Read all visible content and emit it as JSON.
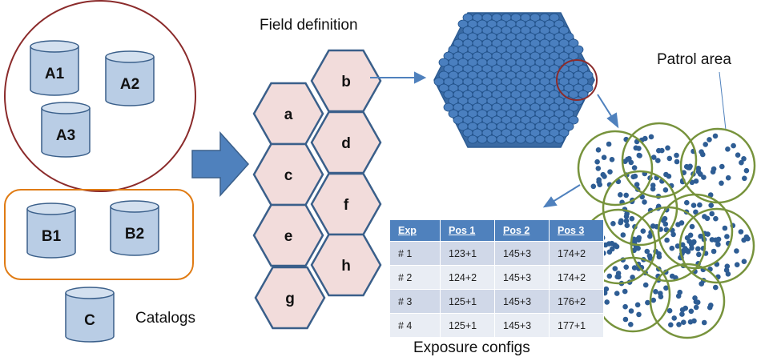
{
  "labels": {
    "field_definition": "Field definition",
    "patrol_area": "Patrol area",
    "catalogs": "Catalogs",
    "exposure_configs": "Exposure configs"
  },
  "catalog_groups": [
    {
      "id": "group-a",
      "shape": "circle",
      "border_color": "#8b2b2b",
      "catalogs": [
        "A1",
        "A2",
        "A3"
      ]
    },
    {
      "id": "group-b",
      "shape": "rounded-rect",
      "border_color": "#e07b13",
      "catalogs": [
        "B1",
        "B2"
      ]
    },
    {
      "id": "single",
      "shape": "none",
      "catalogs": [
        "C"
      ]
    }
  ],
  "fields": [
    "a",
    "b",
    "c",
    "d",
    "e",
    "f",
    "g",
    "h"
  ],
  "exposure_table": {
    "headers": [
      "Exp",
      "Pos 1",
      "Pos 2",
      "Pos 3"
    ],
    "rows": [
      [
        "# 1",
        "123+1",
        "145+3",
        "174+2"
      ],
      [
        "# 2",
        "124+2",
        "145+3",
        "174+2"
      ],
      [
        "# 3",
        "125+1",
        "145+3",
        "176+2"
      ],
      [
        "# 4",
        "125+1",
        "145+3",
        "177+1"
      ]
    ]
  },
  "colors": {
    "cylinder_fill": "#b9cde5",
    "cylinder_stroke": "#3a5f8a",
    "hex_fill": "#f2dcdb",
    "hex_stroke": "#3a5f8a",
    "arrow": "#4f81bd",
    "dot": "#2e5d94",
    "patrol_circle": "#77933c",
    "highlight_circle": "#8b2b2b"
  }
}
